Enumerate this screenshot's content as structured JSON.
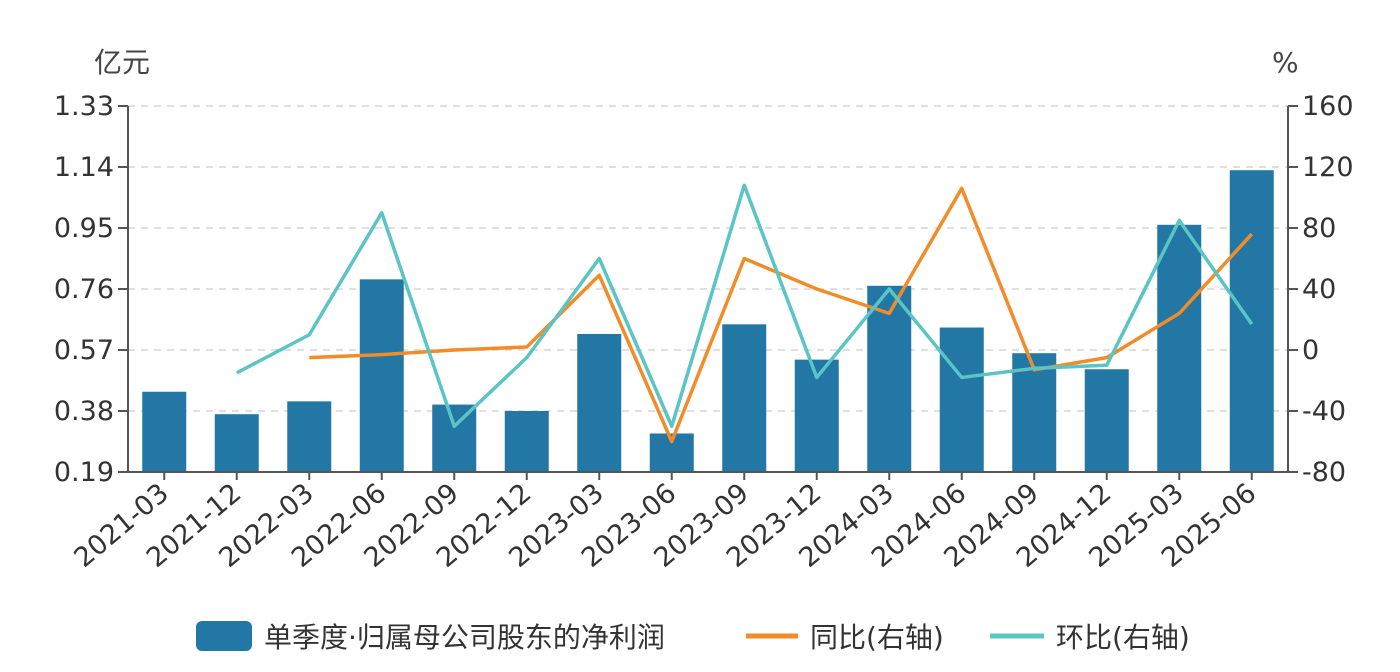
{
  "chart_data": {
    "type": "bar",
    "categories": [
      "2021-03",
      "2021-12",
      "2022-03",
      "2022-06",
      "2022-09",
      "2022-12",
      "2023-03",
      "2023-06",
      "2023-09",
      "2023-12",
      "2024-03",
      "2024-06",
      "2024-09",
      "2024-12",
      "2025-03",
      "2025-06"
    ],
    "left_axis": {
      "unit": "亿元",
      "ticks": [
        "0.19",
        "0.38",
        "0.57",
        "0.76",
        "0.95",
        "1.14",
        "1.33"
      ],
      "range": [
        0.19,
        1.33
      ]
    },
    "right_axis": {
      "unit": "%",
      "ticks": [
        "-80",
        "-40",
        "0",
        "40",
        "80",
        "120",
        "160"
      ],
      "range": [
        -80,
        160
      ]
    },
    "series": [
      {
        "name": "单季度·归属母公司股东的净利润",
        "kind": "bar",
        "axis": "left",
        "color": "#2377a4",
        "values": [
          0.44,
          0.37,
          0.41,
          0.79,
          0.4,
          0.38,
          0.62,
          0.31,
          0.65,
          0.54,
          0.77,
          0.64,
          0.56,
          0.51,
          0.96,
          1.13
        ]
      },
      {
        "name": "同比(右轴)",
        "kind": "line",
        "axis": "right",
        "color": "#f28c28",
        "values": [
          null,
          null,
          -5,
          -3,
          0,
          2,
          49,
          -60,
          60,
          40,
          24,
          106,
          -13,
          -5,
          24,
          76
        ]
      },
      {
        "name": "环比(右轴)",
        "kind": "line",
        "axis": "right",
        "color": "#5bc4c4",
        "values": [
          null,
          -15,
          10,
          90,
          -50,
          -5,
          60,
          -50,
          108,
          -18,
          40,
          -18,
          -12,
          -10,
          85,
          17
        ]
      }
    ],
    "grid": true,
    "legend_position": "bottom"
  }
}
